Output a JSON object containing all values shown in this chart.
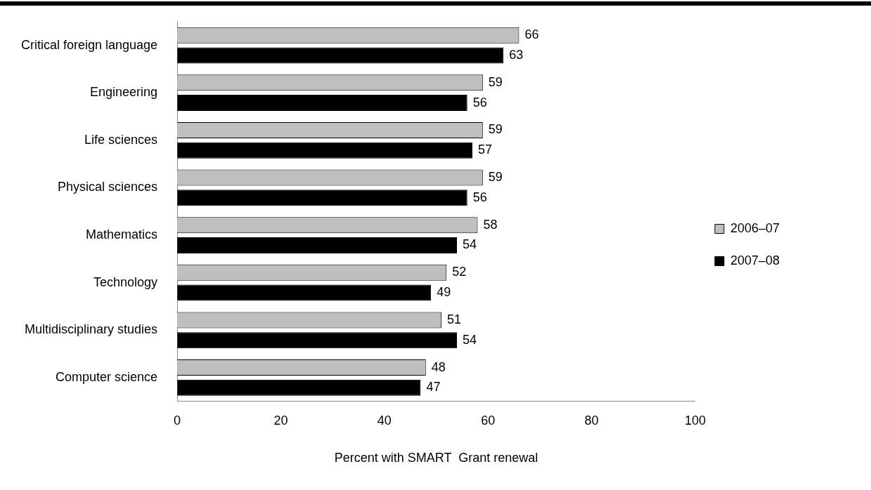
{
  "chart_data": {
    "type": "bar",
    "orientation": "horizontal",
    "xlabel": "Percent with SMART  Grant renewal",
    "categories": [
      "Critical foreign language",
      "Engineering",
      "Life sciences",
      "Physical sciences",
      "Mathematics",
      "Technology",
      "Multidisciplinary studies",
      "Computer science"
    ],
    "series": [
      {
        "name": "2006–07",
        "color": "#bfbfbf",
        "values": [
          66,
          59,
          59,
          59,
          58,
          52,
          51,
          48
        ]
      },
      {
        "name": "2007–08",
        "color": "#000000",
        "values": [
          63,
          56,
          57,
          56,
          54,
          49,
          54,
          47
        ]
      }
    ],
    "xlim": [
      0,
      100
    ],
    "xticks": [
      0,
      20,
      40,
      60,
      80,
      100
    ],
    "grid": false,
    "legend": "right",
    "data_labels": true
  }
}
